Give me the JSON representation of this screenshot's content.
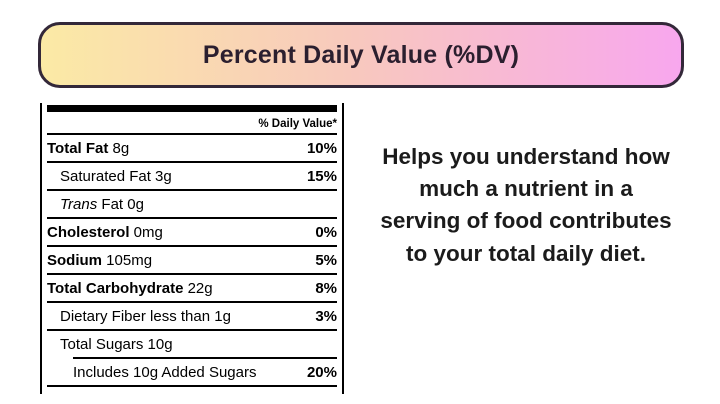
{
  "banner": {
    "title": "Percent Daily Value (%DV)",
    "gradient_left": "#fbeaa5",
    "gradient_mid": "#f8c9bd",
    "gradient_right": "#f8a7ee",
    "border_color": "#332839",
    "text_color": "#2b1f2f"
  },
  "label": {
    "column_header": "% Daily Value*",
    "rows": [
      {
        "bold": "Total Fat",
        "italic": "",
        "text": " 8g",
        "value": "10%",
        "indent": 0,
        "sep": "full"
      },
      {
        "bold": "",
        "italic": "",
        "text": "Saturated Fat 3g",
        "value": "15%",
        "indent": 1,
        "sep": "full"
      },
      {
        "bold": "",
        "italic": "Trans",
        "text": " Fat 0g",
        "value": "",
        "indent": 1,
        "sep": "full"
      },
      {
        "bold": "Cholesterol",
        "italic": "",
        "text": " 0mg",
        "value": "0%",
        "indent": 0,
        "sep": "full"
      },
      {
        "bold": "Sodium",
        "italic": "",
        "text": " 105mg",
        "value": "5%",
        "indent": 0,
        "sep": "full"
      },
      {
        "bold": "Total Carbohydrate",
        "italic": "",
        "text": " 22g",
        "value": "8%",
        "indent": 0,
        "sep": "full"
      },
      {
        "bold": "",
        "italic": "",
        "text": "Dietary Fiber less than 1g",
        "value": "3%",
        "indent": 1,
        "sep": "full"
      },
      {
        "bold": "",
        "italic": "",
        "text": "Total Sugars 10g",
        "value": "",
        "indent": 1,
        "sep": "indent"
      },
      {
        "bold": "",
        "italic": "",
        "text": "Includes 10g Added Sugars",
        "value": "20%",
        "indent": 2,
        "sep": "full"
      }
    ]
  },
  "explanation": {
    "text": "Helps you understand how\nmuch a nutrient in a\nserving of food contributes\nto your total daily diet."
  }
}
